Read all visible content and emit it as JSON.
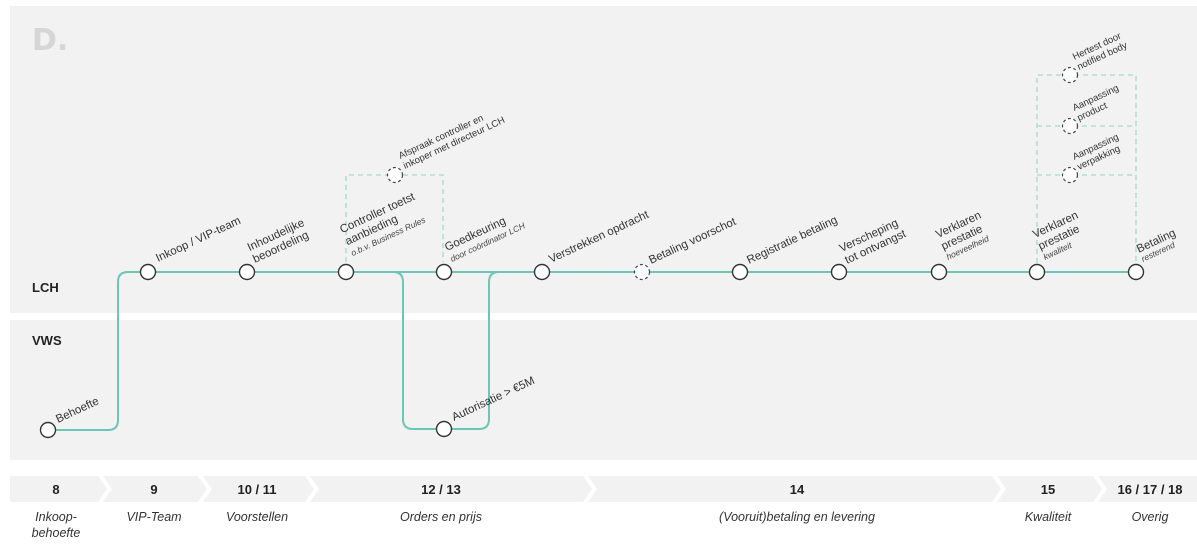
{
  "logo": {
    "text": "D."
  },
  "lanes": {
    "lch": "LCH",
    "vws": "VWS"
  },
  "colors": {
    "flow": "#6cc6b8",
    "branch": "#b4dcd4",
    "lane_bg": "#f2f2f2",
    "phase_bg": "#f2f2f2"
  },
  "steps": {
    "behoefte": "Behoefte",
    "inkoop": "Inkoop / VIP-team",
    "inhoudelijke_1": "Inhoudelijke",
    "inhoudelijke_2": "beoordeling",
    "controller_1": "Controller toetst",
    "controller_2": "aanbieding",
    "controller_sub": "o.b.v. Business Rules",
    "afspraak_1": "Afspraak controller en",
    "afspraak_2": "inkoper met directeur LCH",
    "goedkeuring": "Goedkeuring",
    "goedkeuring_sub": "door coördinator LCH",
    "autorisatie": "Autorisatie > €5M",
    "verstrekken": "Verstrekken opdracht",
    "betaling_voorschot": "Betaling voorschot",
    "registratie": "Registratie betaling",
    "verscheping_1": "Verscheping",
    "verscheping_2": "tot ontvangst",
    "verklaren_h_1": "Verklaren",
    "verklaren_h_2": "prestatie",
    "verklaren_h_sub": "hoeveelheid",
    "verklaren_k_1": "Verklaren",
    "verklaren_k_2": "prestatie",
    "verklaren_k_sub": "kwaliteit",
    "betaling_1": "Betaling",
    "betaling_sub": "resterend",
    "hertest_1": "Hertest door",
    "hertest_2": "notified body",
    "aanpassing_product_1": "Aanpassing",
    "aanpassing_product_2": "product",
    "aanpassing_verpakking_1": "Aanpassing",
    "aanpassing_verpakking_2": "verpakking"
  },
  "phases": [
    {
      "num": "8",
      "name": "Inkoop-",
      "name2": "behoefte"
    },
    {
      "num": "9",
      "name": "VIP-Team"
    },
    {
      "num": "10 / 11",
      "name": "Voorstellen"
    },
    {
      "num": "12 / 13",
      "name": "Orders en prijs"
    },
    {
      "num": "14",
      "name": "(Vooruit)betaling en levering"
    },
    {
      "num": "15",
      "name": "Kwaliteit"
    },
    {
      "num": "16 / 17 / 18",
      "name": "Overig"
    }
  ]
}
